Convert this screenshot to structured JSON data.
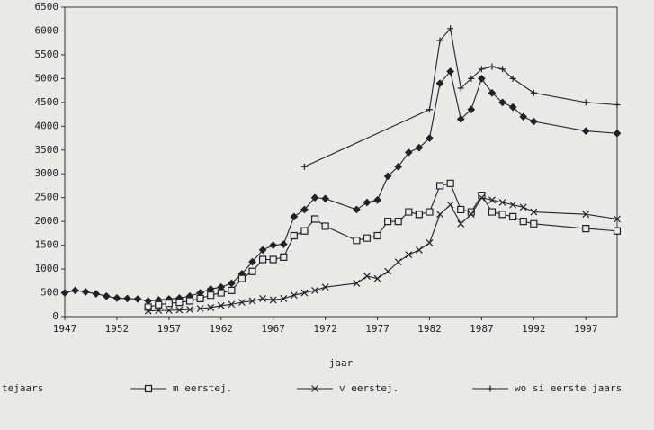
{
  "chart_data": {
    "type": "line",
    "x_label": "jaar",
    "xlim": [
      1947,
      2000
    ],
    "xticks": [
      1947,
      1952,
      1957,
      1962,
      1967,
      1972,
      1977,
      1982,
      1987,
      1992,
      1997
    ],
    "ylim": [
      0,
      6500
    ],
    "yticks": [
      0,
      500,
      1000,
      1500,
      2000,
      2500,
      3000,
      3500,
      4000,
      4500,
      5000,
      5500,
      6000,
      6500
    ],
    "series": [
      {
        "name": "tejaars",
        "color": "#222222",
        "marker": "diamond",
        "x": [
          1947,
          1948,
          1949,
          1950,
          1951,
          1952,
          1953,
          1954,
          1955,
          1956,
          1957,
          1958,
          1959,
          1960,
          1961,
          1962,
          1963,
          1964,
          1965,
          1966,
          1967,
          1968,
          1969,
          1970,
          1971,
          1972,
          1975,
          1976,
          1977,
          1978,
          1979,
          1980,
          1981,
          1982,
          1983,
          1984,
          1985,
          1986,
          1987,
          1988,
          1989,
          1990,
          1991,
          1992,
          1997,
          2000
        ],
        "values": [
          500,
          550,
          520,
          480,
          430,
          390,
          380,
          370,
          330,
          350,
          370,
          390,
          430,
          500,
          580,
          620,
          700,
          900,
          1150,
          1400,
          1500,
          1520,
          2100,
          2250,
          2500,
          2480,
          2250,
          2400,
          2450,
          2950,
          3150,
          3450,
          3550,
          3750,
          4900,
          5150,
          4150,
          4350,
          5000,
          4700,
          4500,
          4400,
          4200,
          4100,
          3900,
          3850
        ]
      },
      {
        "name": "m eerstej.",
        "color": "#222222",
        "marker": "square",
        "x": [
          1955,
          1956,
          1957,
          1958,
          1959,
          1960,
          1961,
          1962,
          1963,
          1964,
          1965,
          1966,
          1967,
          1968,
          1969,
          1970,
          1971,
          1972,
          1975,
          1976,
          1977,
          1978,
          1979,
          1980,
          1981,
          1982,
          1983,
          1984,
          1985,
          1986,
          1987,
          1988,
          1989,
          1990,
          1991,
          1992,
          1997,
          2000
        ],
        "values": [
          200,
          250,
          280,
          300,
          330,
          380,
          450,
          500,
          550,
          800,
          950,
          1200,
          1200,
          1250,
          1700,
          1800,
          2050,
          1900,
          1600,
          1650,
          1700,
          2000,
          2000,
          2200,
          2150,
          2200,
          2750,
          2800,
          2250,
          2200,
          2550,
          2200,
          2150,
          2100,
          2000,
          1950,
          1850,
          1800
        ]
      },
      {
        "name": "v eerstej.",
        "color": "#222222",
        "marker": "x",
        "x": [
          1955,
          1956,
          1957,
          1958,
          1959,
          1960,
          1961,
          1962,
          1963,
          1964,
          1965,
          1966,
          1967,
          1968,
          1969,
          1970,
          1971,
          1972,
          1975,
          1976,
          1977,
          1978,
          1979,
          1980,
          1981,
          1982,
          1983,
          1984,
          1985,
          1986,
          1987,
          1988,
          1989,
          1990,
          1991,
          1992,
          1997,
          2000
        ],
        "values": [
          120,
          130,
          130,
          140,
          150,
          170,
          190,
          230,
          260,
          300,
          330,
          380,
          350,
          380,
          450,
          500,
          550,
          620,
          700,
          850,
          800,
          950,
          1150,
          1300,
          1400,
          1550,
          2150,
          2350,
          1950,
          2150,
          2500,
          2450,
          2400,
          2350,
          2300,
          2200,
          2150,
          2050
        ]
      },
      {
        "name": "wo si eerste jaars",
        "color": "#222222",
        "marker": "plus",
        "x": [
          1970,
          1982,
          1983,
          1984,
          1985,
          1986,
          1987,
          1988,
          1989,
          1990,
          1992,
          1997,
          2000
        ],
        "values": [
          3150,
          4350,
          5800,
          6050,
          4800,
          5000,
          5200,
          5250,
          5200,
          5000,
          4700,
          4500,
          4450
        ]
      }
    ]
  }
}
